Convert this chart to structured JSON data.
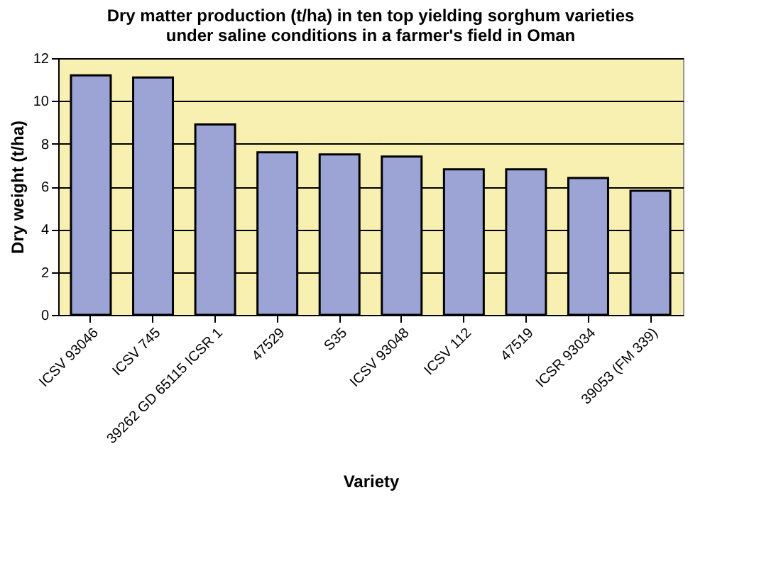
{
  "chart_data": {
    "type": "bar",
    "title": [
      "Dry matter production (t/ha) in ten top yielding sorghum varieties",
      "under saline conditions in a farmer's field in Oman"
    ],
    "xlabel": "Variety",
    "ylabel": "Dry weight (t/ha)",
    "categories": [
      "ICSV 93046",
      "ICSV 745",
      "39262 GD 65115 ICSR 1",
      "47529",
      "S35",
      "ICSV 93048",
      "ICSV 112",
      "47519",
      "ICSR 93034",
      "39053 (FM 339)"
    ],
    "values": [
      11.2,
      11.1,
      8.9,
      7.6,
      7.5,
      7.4,
      6.8,
      6.8,
      6.4,
      5.8
    ],
    "color": "#9ba4d4",
    "ylim": [
      0,
      12
    ],
    "yticks": [
      0,
      2,
      4,
      6,
      8,
      10,
      12
    ],
    "grid": "y"
  }
}
